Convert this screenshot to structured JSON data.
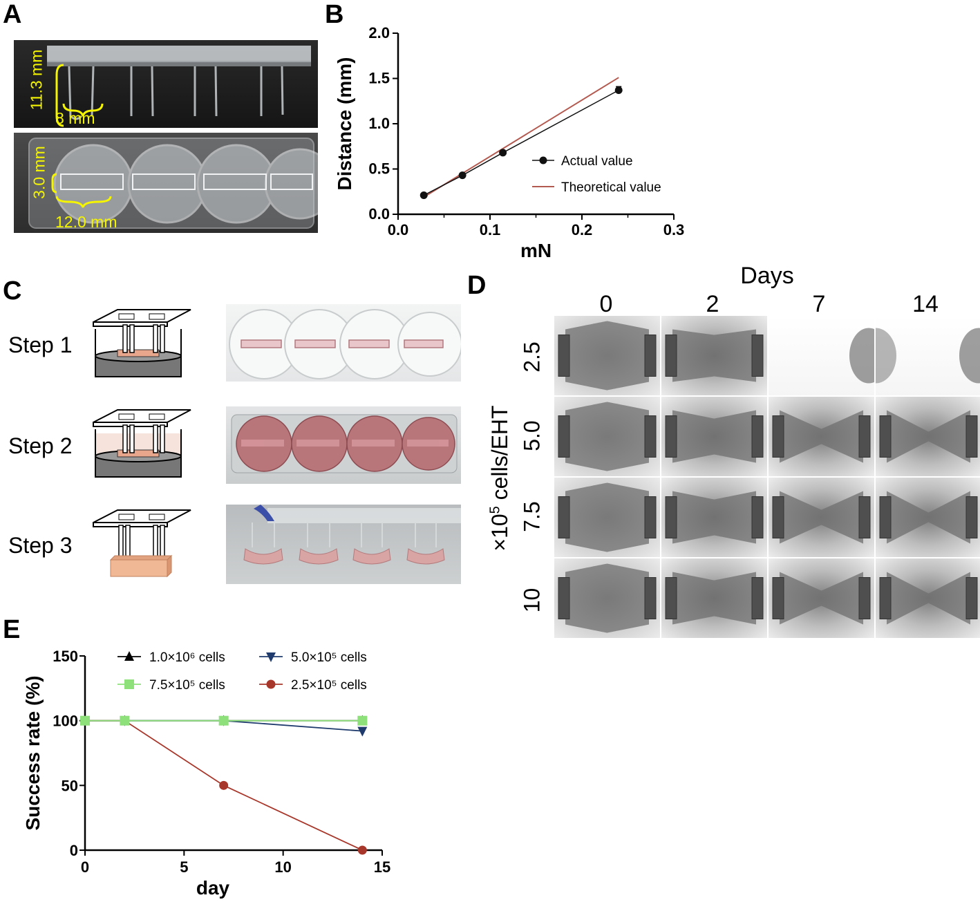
{
  "panel_letters": {
    "a": "A",
    "b": "B",
    "c": "C",
    "d": "D",
    "e": "E"
  },
  "panel_a": {
    "height_label": "11.3 mm",
    "width_label": "8 mm",
    "well_height_label": "3.0 mm",
    "well_width_label": "12.0 mm",
    "annotation_color": "#f5f500"
  },
  "panel_c": {
    "steps": [
      "Step 1",
      "Step 2",
      "Step 3"
    ]
  },
  "panel_d": {
    "header": "Days",
    "days": [
      "0",
      "2",
      "7",
      "14"
    ],
    "row_axis_label_prefix": "×10",
    "row_axis_label_exp": "5",
    "row_axis_label_suffix": " cells/EHT",
    "rows": [
      "2.5",
      "5.0",
      "7.5",
      "10"
    ]
  },
  "chart_data": [
    {
      "type": "line",
      "panel": "B",
      "xlabel": "mN",
      "ylabel": "Distance (mm)",
      "xlim": [
        0.0,
        0.3
      ],
      "ylim": [
        0.0,
        2.0
      ],
      "xticks": [
        "0.0",
        "0.1",
        "0.2",
        "0.3"
      ],
      "yticks": [
        "0.0",
        "0.5",
        "1.0",
        "1.5",
        "2.0"
      ],
      "legend_position": "right",
      "series": [
        {
          "name": "Actual value",
          "color": "#111111",
          "marker": "circle",
          "x": [
            0.028,
            0.07,
            0.114,
            0.24
          ],
          "y": [
            0.21,
            0.43,
            0.68,
            1.37
          ],
          "error": [
            0.01,
            0.01,
            0.01,
            0.04
          ]
        },
        {
          "name": "Theoretical value",
          "color": "#b35a50",
          "marker": "none",
          "x": [
            0.028,
            0.24
          ],
          "y": [
            0.19,
            1.51
          ]
        }
      ]
    },
    {
      "type": "line",
      "panel": "E",
      "xlabel": "day",
      "ylabel": "Success rate (%)",
      "xlim": [
        0,
        15
      ],
      "ylim": [
        0,
        150
      ],
      "xticks": [
        "0",
        "5",
        "10",
        "15"
      ],
      "yticks": [
        "0",
        "50",
        "100",
        "150"
      ],
      "legend_position": "top",
      "series": [
        {
          "name": "1.0×10⁶ cells",
          "color": "#000000",
          "marker": "triangle-up",
          "x": [
            0,
            2,
            7,
            14
          ],
          "y": [
            100,
            100,
            100,
            100
          ]
        },
        {
          "name": "5.0×10⁵ cells",
          "color": "#1f3b6e",
          "marker": "triangle-down",
          "x": [
            0,
            2,
            7,
            14
          ],
          "y": [
            100,
            100,
            100,
            92
          ]
        },
        {
          "name": "7.5×10⁵ cells",
          "color": "#8ee07a",
          "marker": "square",
          "x": [
            0,
            2,
            7,
            14
          ],
          "y": [
            100,
            100,
            100,
            100
          ]
        },
        {
          "name": "2.5×10⁵ cells",
          "color": "#a8372b",
          "marker": "circle",
          "x": [
            0,
            2,
            7,
            14
          ],
          "y": [
            100,
            100,
            50,
            0
          ]
        }
      ]
    }
  ]
}
